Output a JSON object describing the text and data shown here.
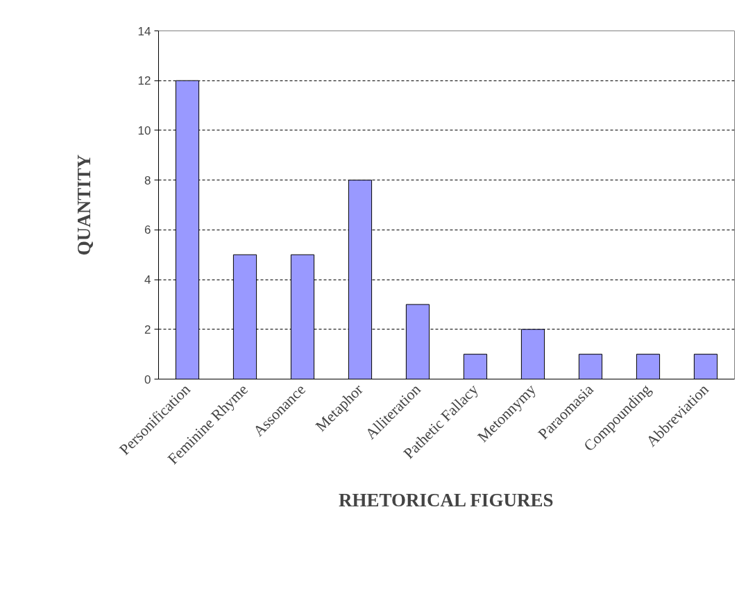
{
  "chart_data": {
    "type": "bar",
    "categories": [
      "Personification",
      "Feminine Rhyme",
      "Assonance",
      "Metaphor",
      "Alliteration",
      "Pathetic Fallacy",
      "Metonnymy",
      "Paraomasia",
      "Compounding",
      "Abbreviation"
    ],
    "values": [
      12,
      5,
      5,
      8,
      3,
      1,
      2,
      1,
      1,
      1
    ],
    "color": "#9999ff",
    "xlabel": "RHETORICAL FIGURES",
    "ylabel": "QUANTITY",
    "ylim": [
      0,
      14
    ],
    "yticks": [
      0,
      2,
      4,
      6,
      8,
      10,
      12,
      14
    ],
    "grid": "y"
  }
}
